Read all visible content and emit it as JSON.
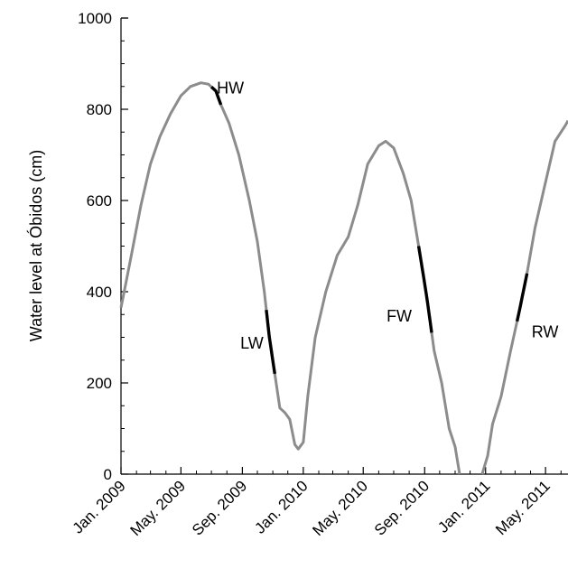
{
  "chart_data": {
    "type": "line",
    "title": "",
    "xlabel": "",
    "ylabel": "Water level at Óbidos (cm)",
    "ylim": [
      0,
      1000
    ],
    "xlim": [
      "2009-01-01",
      "2011-06-15"
    ],
    "yticks": [
      0,
      200,
      400,
      600,
      800,
      1000
    ],
    "xticks": [
      {
        "date": "2009-01-01",
        "label": "Jan. 2009"
      },
      {
        "date": "2009-05-01",
        "label": "May. 2009"
      },
      {
        "date": "2009-09-01",
        "label": "Sep. 2009"
      },
      {
        "date": "2010-01-01",
        "label": "Jan. 2010"
      },
      {
        "date": "2010-05-01",
        "label": "May. 2010"
      },
      {
        "date": "2010-09-01",
        "label": "Sep. 2010"
      },
      {
        "date": "2011-01-01",
        "label": "Jan. 2011"
      },
      {
        "date": "2011-05-01",
        "label": "May. 2011"
      }
    ],
    "grid": false,
    "legend": "none",
    "colors": {
      "line": "#8c8c8c",
      "highlight": "#000000"
    },
    "series": [
      {
        "points": [
          [
            "2009-01-01",
            365
          ],
          [
            "2009-01-20",
            470
          ],
          [
            "2009-02-10",
            590
          ],
          [
            "2009-03-01",
            680
          ],
          [
            "2009-03-20",
            740
          ],
          [
            "2009-04-10",
            790
          ],
          [
            "2009-05-01",
            830
          ],
          [
            "2009-05-20",
            850
          ],
          [
            "2009-06-10",
            858
          ],
          [
            "2009-06-25",
            855
          ],
          [
            "2009-07-10",
            840
          ],
          [
            "2009-07-20",
            810
          ],
          [
            "2009-08-05",
            770
          ],
          [
            "2009-08-25",
            700
          ],
          [
            "2009-09-15",
            600
          ],
          [
            "2009-10-01",
            510
          ],
          [
            "2009-10-15",
            400
          ],
          [
            "2009-10-25",
            300
          ],
          [
            "2009-11-05",
            220
          ],
          [
            "2009-11-15",
            145
          ],
          [
            "2009-11-25",
            135
          ],
          [
            "2009-12-05",
            120
          ],
          [
            "2009-12-15",
            65
          ],
          [
            "2009-12-22",
            55
          ],
          [
            "2010-01-01",
            70
          ],
          [
            "2010-01-10",
            170
          ],
          [
            "2010-01-25",
            300
          ],
          [
            "2010-02-15",
            400
          ],
          [
            "2010-03-10",
            480
          ],
          [
            "2010-04-01",
            520
          ],
          [
            "2010-04-20",
            590
          ],
          [
            "2010-05-10",
            680
          ],
          [
            "2010-06-01",
            720
          ],
          [
            "2010-06-15",
            730
          ],
          [
            "2010-07-01",
            715
          ],
          [
            "2010-07-20",
            660
          ],
          [
            "2010-08-05",
            600
          ],
          [
            "2010-08-20",
            500
          ],
          [
            "2010-09-05",
            390
          ],
          [
            "2010-09-20",
            270
          ],
          [
            "2010-10-05",
            200
          ],
          [
            "2010-10-20",
            100
          ],
          [
            "2010-11-01",
            60
          ],
          [
            "2010-11-10",
            0
          ]
        ]
      },
      {
        "points": [
          [
            "2010-12-25",
            0
          ],
          [
            "2011-01-05",
            40
          ],
          [
            "2011-01-15",
            110
          ],
          [
            "2011-02-01",
            170
          ],
          [
            "2011-02-20",
            270
          ],
          [
            "2011-03-10",
            360
          ],
          [
            "2011-03-25",
            440
          ],
          [
            "2011-04-10",
            540
          ],
          [
            "2011-05-01",
            640
          ],
          [
            "2011-05-20",
            730
          ],
          [
            "2011-06-10",
            765
          ],
          [
            "2011-06-15",
            775
          ]
        ]
      }
    ],
    "highlights": [
      {
        "label": "HW",
        "from": "2009-07-01",
        "to": "2009-07-20",
        "label_date": "2009-08-08",
        "label_value": 835
      },
      {
        "label": "LW",
        "from": "2009-10-19",
        "to": "2009-11-05",
        "label_date": "2009-09-20",
        "label_value": 275
      },
      {
        "label": "FW",
        "from": "2010-08-20",
        "to": "2010-09-15",
        "label_date": "2010-07-12",
        "label_value": 335
      },
      {
        "label": "RW",
        "from": "2011-03-05",
        "to": "2011-03-25",
        "label_date": "2011-04-30",
        "label_value": 300
      }
    ]
  }
}
